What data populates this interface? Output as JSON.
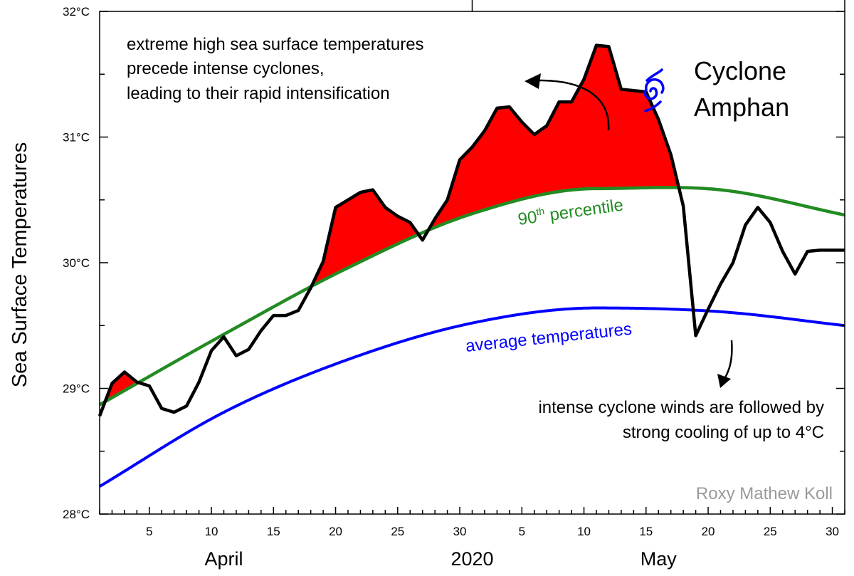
{
  "chart_data": {
    "type": "line",
    "ylabel": "Sea Surface Temperatures",
    "ylim": [
      28,
      32
    ],
    "y_ticks": [
      "28°C",
      "29°C",
      "30°C",
      "31°C",
      "32°C"
    ],
    "x_ticks": [
      "5",
      "10",
      "15",
      "20",
      "25",
      "30",
      "5",
      "10",
      "15",
      "20",
      "25",
      "30"
    ],
    "month_labels": [
      "April",
      "2020",
      "May"
    ],
    "grid": false,
    "colors": {
      "observed": "#000000",
      "p90": "#228b22",
      "average": "#0000ff",
      "exceedance": "#ff0000",
      "cyclone_icon": "#0000ff"
    },
    "series": [
      {
        "name": "observed",
        "dates": [
          "Apr 1",
          "Apr 2",
          "Apr 3",
          "Apr 4",
          "Apr 5",
          "Apr 6",
          "Apr 7",
          "Apr 8",
          "Apr 9",
          "Apr 10",
          "Apr 11",
          "Apr 12",
          "Apr 13",
          "Apr 14",
          "Apr 15",
          "Apr 16",
          "Apr 17",
          "Apr 18",
          "Apr 19",
          "Apr 20",
          "Apr 21",
          "Apr 22",
          "Apr 23",
          "Apr 24",
          "Apr 25",
          "Apr 26",
          "Apr 27",
          "Apr 28",
          "Apr 29",
          "Apr 30",
          "May 1",
          "May 2",
          "May 3",
          "May 4",
          "May 5",
          "May 6",
          "May 7",
          "May 8",
          "May 9",
          "May 10",
          "May 11",
          "May 12",
          "May 13",
          "May 14",
          "May 15",
          "May 16",
          "May 17",
          "May 18",
          "May 19",
          "May 20",
          "May 21",
          "May 22",
          "May 23",
          "May 24",
          "May 25",
          "May 26",
          "May 27",
          "May 28",
          "May 29",
          "May 30",
          "May 31"
        ],
        "values": [
          28.78,
          29.04,
          29.13,
          29.05,
          29.02,
          28.84,
          28.81,
          28.86,
          29.05,
          29.3,
          29.41,
          29.26,
          29.31,
          29.46,
          29.58,
          29.58,
          29.62,
          29.8,
          30.01,
          30.44,
          30.5,
          30.56,
          30.58,
          30.44,
          30.37,
          30.32,
          30.18,
          30.35,
          30.5,
          30.82,
          30.92,
          31.05,
          31.23,
          31.24,
          31.12,
          31.02,
          31.09,
          31.28,
          31.28,
          31.46,
          31.73,
          31.72,
          31.38,
          31.37,
          31.36,
          31.14,
          30.86,
          30.45,
          29.42,
          29.63,
          29.83,
          30.0,
          30.3,
          30.44,
          30.32,
          30.09,
          29.91,
          30.09,
          30.1,
          30.1,
          30.1
        ]
      },
      {
        "name": "90th percentile",
        "dates": [
          "Apr 1",
          "Apr 11",
          "Apr 21",
          "May 1",
          "May 11",
          "May 21",
          "May 31"
        ],
        "values": [
          28.87,
          29.43,
          29.96,
          30.39,
          30.59,
          30.58,
          30.38
        ]
      },
      {
        "name": "average temperatures",
        "dates": [
          "Apr 1",
          "Apr 11",
          "Apr 21",
          "May 1",
          "May 11",
          "May 21",
          "May 31"
        ],
        "values": [
          28.22,
          28.81,
          29.23,
          29.52,
          29.64,
          29.61,
          29.5
        ]
      }
    ],
    "annotations": {
      "top": [
        "extreme high sea surface temperatures",
        "precede intense cyclones,",
        "leading to their rapid intensification"
      ],
      "bottom": [
        "intense cyclone winds are followed by",
        "strong cooling of up to 4°C"
      ],
      "cyclone": [
        "Cyclone",
        "Amphan"
      ],
      "p90_label": "90th percentile",
      "p90_label_main": "90",
      "p90_label_sup": "th",
      "p90_label_rest": " percentile",
      "avg_label": "average temperatures",
      "credit": "Roxy Mathew Koll"
    }
  }
}
